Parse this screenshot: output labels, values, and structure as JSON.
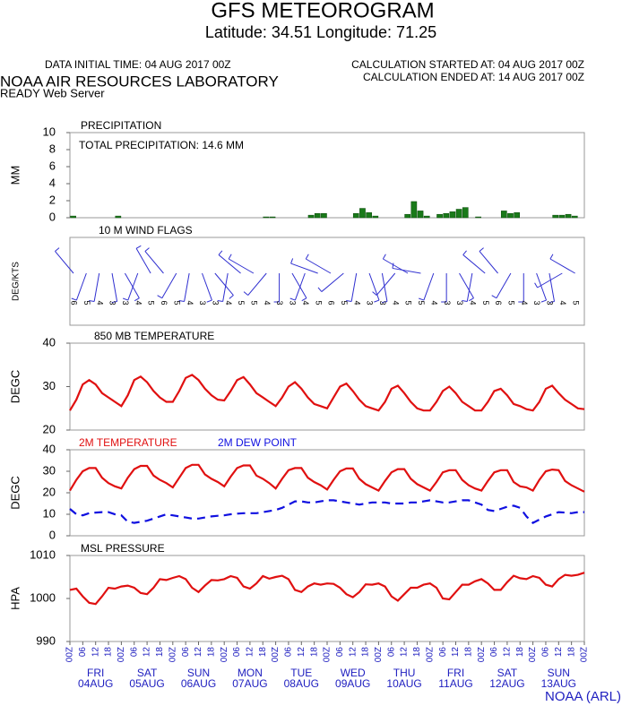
{
  "header": {
    "title": "GFS METEOROGRAM",
    "subtitle": "Latitude: 34.51 Longitude:  71.25",
    "init": "DATA INITIAL TIME: 04 AUG 2017 00Z",
    "started": "CALCULATION STARTED AT: 04 AUG 2017 00Z",
    "ended": "CALCULATION ENDED AT: 14 AUG 2017 00Z",
    "lab": "NOAA AIR RESOURCES LABORATORY",
    "server": "READY Web Server",
    "credit": "NOAA (ARL)"
  },
  "time": {
    "xlim": [
      0,
      240
    ],
    "hours": [
      0,
      3,
      6,
      9,
      12,
      15,
      18,
      21,
      24,
      27,
      30,
      33,
      36,
      39,
      42,
      45,
      48,
      51,
      54,
      57,
      60,
      63,
      66,
      69,
      72,
      75,
      78,
      81,
      84,
      87,
      90,
      93,
      96,
      99,
      102,
      105,
      108,
      111,
      114,
      117,
      120,
      123,
      126,
      129,
      132,
      135,
      138,
      141,
      144,
      147,
      150,
      153,
      156,
      159,
      162,
      165,
      168,
      171,
      174,
      177,
      180,
      183,
      186,
      189,
      192,
      195,
      198,
      201,
      204,
      207,
      210,
      213,
      216,
      219,
      222,
      225,
      228,
      231,
      234,
      237,
      240
    ],
    "xticks": [
      {
        "value": 0,
        "label": "00Z"
      },
      {
        "value": 6,
        "label": "06"
      },
      {
        "value": 12,
        "label": "12"
      },
      {
        "value": 18,
        "label": "18"
      },
      {
        "value": 24,
        "label": "00Z"
      },
      {
        "value": 30,
        "label": "06"
      },
      {
        "value": 36,
        "label": "12"
      },
      {
        "value": 42,
        "label": "18"
      },
      {
        "value": 48,
        "label": "00Z"
      },
      {
        "value": 54,
        "label": "06"
      },
      {
        "value": 60,
        "label": "12"
      },
      {
        "value": 66,
        "label": "18"
      },
      {
        "value": 72,
        "label": "00Z"
      },
      {
        "value": 78,
        "label": "06"
      },
      {
        "value": 84,
        "label": "12"
      },
      {
        "value": 90,
        "label": "18"
      },
      {
        "value": 96,
        "label": "00Z"
      },
      {
        "value": 102,
        "label": "06"
      },
      {
        "value": 108,
        "label": "12"
      },
      {
        "value": 114,
        "label": "18"
      },
      {
        "value": 120,
        "label": "00Z"
      },
      {
        "value": 126,
        "label": "06"
      },
      {
        "value": 132,
        "label": "12"
      },
      {
        "value": 138,
        "label": "18"
      },
      {
        "value": 144,
        "label": "00Z"
      },
      {
        "value": 150,
        "label": "06"
      },
      {
        "value": 156,
        "label": "12"
      },
      {
        "value": 162,
        "label": "18"
      },
      {
        "value": 168,
        "label": "00Z"
      },
      {
        "value": 174,
        "label": "06"
      },
      {
        "value": 180,
        "label": "12"
      },
      {
        "value": 186,
        "label": "18"
      },
      {
        "value": 192,
        "label": "00Z"
      },
      {
        "value": 198,
        "label": "06"
      },
      {
        "value": 204,
        "label": "12"
      },
      {
        "value": 210,
        "label": "18"
      },
      {
        "value": 216,
        "label": "00Z"
      },
      {
        "value": 222,
        "label": "06"
      },
      {
        "value": 228,
        "label": "12"
      },
      {
        "value": 234,
        "label": "18"
      },
      {
        "value": 240,
        "label": "00Z"
      }
    ],
    "days": [
      {
        "day": "FRI",
        "date": "04AUG"
      },
      {
        "day": "SAT",
        "date": "05AUG"
      },
      {
        "day": "SUN",
        "date": "06AUG"
      },
      {
        "day": "MON",
        "date": "07AUG"
      },
      {
        "day": "TUE",
        "date": "08AUG"
      },
      {
        "day": "WED",
        "date": "09AUG"
      },
      {
        "day": "THU",
        "date": "10AUG"
      },
      {
        "day": "FRI",
        "date": "11AUG"
      },
      {
        "day": "SAT",
        "date": "12AUG"
      },
      {
        "day": "SUN",
        "date": "13AUG"
      }
    ]
  },
  "chart_data": [
    {
      "type": "bar",
      "title": "PRECIPITATION",
      "annotation": "TOTAL PRECIPITATION:  14.6 MM",
      "ylabel": "MM",
      "ylim": [
        0,
        10
      ],
      "yticks": [
        0,
        2,
        4,
        6,
        8,
        10
      ],
      "color": "#1a7a1a",
      "values": [
        0.2,
        0,
        0,
        0,
        0,
        0,
        0,
        0.2,
        0,
        0,
        0,
        0,
        0,
        0,
        0,
        0,
        0,
        0,
        0,
        0,
        0,
        0,
        0,
        0,
        0,
        0,
        0,
        0,
        0,
        0,
        0.1,
        0.1,
        0,
        0,
        0,
        0,
        0,
        0.3,
        0.5,
        0.5,
        0,
        0,
        0,
        0,
        0.5,
        1.1,
        0.6,
        0.2,
        0,
        0,
        0,
        0,
        0.4,
        1.9,
        0.8,
        0.2,
        0,
        0.4,
        0.5,
        0.7,
        1.0,
        1.2,
        0,
        0.1,
        0,
        0,
        0,
        0.8,
        0.5,
        0.6,
        0,
        0,
        0,
        0,
        0,
        0.3,
        0.3,
        0.4,
        0.2,
        0
      ]
    },
    {
      "type": "wind",
      "title": "10 M  WIND FLAGS",
      "ylabel": "DEG/KTS",
      "color": "#3030d0",
      "speed": [
        6,
        5,
        4,
        3,
        3,
        4,
        5,
        6,
        5,
        4,
        3,
        3,
        4,
        5,
        5,
        4,
        3,
        3,
        4,
        5,
        6,
        5,
        4,
        3,
        3,
        4,
        5,
        5,
        4,
        3,
        3,
        4,
        5,
        6,
        5,
        4,
        3,
        3,
        4,
        5
      ],
      "direction": [
        320,
        200,
        190,
        170,
        150,
        200,
        330,
        320,
        210,
        190,
        160,
        140,
        190,
        310,
        300,
        220,
        180,
        150,
        200,
        290,
        300,
        230,
        190,
        160,
        170,
        220,
        300,
        280,
        200,
        180,
        150,
        190,
        310,
        320,
        210,
        180,
        160,
        170,
        240,
        300
      ]
    },
    {
      "type": "line",
      "title": "850 MB  TEMPERATURE",
      "ylabel": "DEGC",
      "ylim": [
        20,
        40
      ],
      "yticks": [
        20,
        30,
        40
      ],
      "series": [
        {
          "color": "#e01010",
          "style": "solid",
          "values": [
            24.5,
            27,
            30.5,
            31.5,
            30.5,
            28.5,
            27.5,
            26.5,
            25.5,
            28,
            31.5,
            32.3,
            31,
            29,
            27.5,
            26.5,
            26.5,
            29,
            32,
            32.7,
            31.5,
            29.5,
            28,
            27,
            26.8,
            29,
            31.5,
            32.2,
            30.5,
            28.5,
            27.5,
            26.5,
            25.5,
            27.5,
            30,
            31,
            29.5,
            27.5,
            26,
            25.5,
            25,
            27.5,
            30,
            30.7,
            29,
            27,
            25.5,
            25,
            24.5,
            26.5,
            29.5,
            30.2,
            28.5,
            26.5,
            25,
            24.5,
            24.5,
            26.5,
            29,
            30,
            28.5,
            26.5,
            25.5,
            24.5,
            24.5,
            26.5,
            29,
            29.5,
            28,
            26,
            25.5,
            24.8,
            24.5,
            26.5,
            29.5,
            30.2,
            28.5,
            27,
            26,
            25,
            24.8
          ]
        }
      ]
    },
    {
      "type": "line",
      "ylabel": "DEGC",
      "ylim": [
        0,
        40
      ],
      "yticks": [
        0,
        10,
        20,
        30,
        40
      ],
      "series": [
        {
          "name": "2M TEMPERATURE",
          "color": "#e01010",
          "style": "solid",
          "values": [
            21,
            26,
            30,
            31.5,
            31.5,
            27,
            24.5,
            23,
            22,
            27,
            31,
            32.5,
            32.5,
            28,
            26,
            24.5,
            22.5,
            27,
            31.5,
            33,
            33,
            28.5,
            26.5,
            25,
            23,
            27.5,
            31.5,
            32.7,
            32.7,
            28,
            26.5,
            24.5,
            22,
            26.5,
            30.5,
            31.5,
            31.5,
            27,
            25,
            23.5,
            21.5,
            26,
            30,
            31.3,
            31.3,
            26.5,
            24,
            22.5,
            21,
            25.5,
            29.5,
            31,
            31,
            26.5,
            24,
            22.5,
            21,
            25,
            29.5,
            30.5,
            30.5,
            26,
            23.5,
            22,
            21,
            25.5,
            29.5,
            30.5,
            30.5,
            25,
            23,
            22.5,
            21,
            26,
            30,
            30.8,
            30.5,
            25.5,
            23.5,
            22,
            20.5
          ]
        },
        {
          "name": "2M  DEW POINT",
          "color": "#1010e0",
          "style": "dashed",
          "values": [
            12.5,
            10,
            9.5,
            10.5,
            10.8,
            11,
            11,
            10,
            9.5,
            6.5,
            6,
            6.5,
            7,
            8,
            9,
            10,
            9.5,
            9,
            8.5,
            8,
            8,
            8.5,
            9,
            9.3,
            9.5,
            10,
            10.3,
            10.5,
            10.5,
            10.5,
            11,
            11.5,
            12,
            13,
            14.5,
            16,
            16,
            15.5,
            15.5,
            16,
            16.5,
            16.5,
            16,
            15.5,
            15,
            14.5,
            15,
            15.5,
            15.5,
            15.5,
            15,
            15,
            15,
            15.5,
            15.5,
            16,
            16.5,
            16,
            15.5,
            15.5,
            16,
            16.5,
            16.5,
            15.5,
            14.5,
            12,
            11.5,
            12.5,
            13.5,
            14,
            13,
            9,
            6,
            7.5,
            9,
            10,
            11,
            10.8,
            10.5,
            11,
            11
          ]
        }
      ]
    },
    {
      "type": "line",
      "title": "MSL PRESSURE",
      "ylabel": "HPA",
      "ylim": [
        990,
        1010
      ],
      "yticks": [
        990,
        1000,
        1010
      ],
      "series": [
        {
          "color": "#e01010",
          "style": "solid",
          "values": [
            1002,
            1002.3,
            1000.5,
            999,
            998.7,
            1000.5,
            1002.5,
            1002.3,
            1002.8,
            1003,
            1002.5,
            1001.3,
            1001,
            1002.5,
            1004.5,
            1004.3,
            1004.8,
            1005.2,
            1004.5,
            1002.5,
            1001.5,
            1003,
            1004.3,
            1004.2,
            1004.5,
            1005.2,
            1004.8,
            1002.8,
            1002.3,
            1003.5,
            1005.2,
            1004.6,
            1005,
            1005.3,
            1004.5,
            1002,
            1001.5,
            1002.8,
            1003.5,
            1003.2,
            1003.5,
            1003.4,
            1002.5,
            1001,
            1000.3,
            1001.5,
            1003.3,
            1003.2,
            1003.5,
            1002.8,
            1000.5,
            999.5,
            1001,
            1002.5,
            1002.5,
            1003.2,
            1003.5,
            1002.5,
            1000,
            999.8,
            1001.5,
            1003.2,
            1003.2,
            1004,
            1004.5,
            1003.5,
            1002,
            1002,
            1003.8,
            1005.3,
            1004.7,
            1004.5,
            1005.2,
            1004.8,
            1003.2,
            1002.8,
            1004.5,
            1005.5,
            1005.3,
            1005.5,
            1006
          ]
        }
      ]
    }
  ]
}
